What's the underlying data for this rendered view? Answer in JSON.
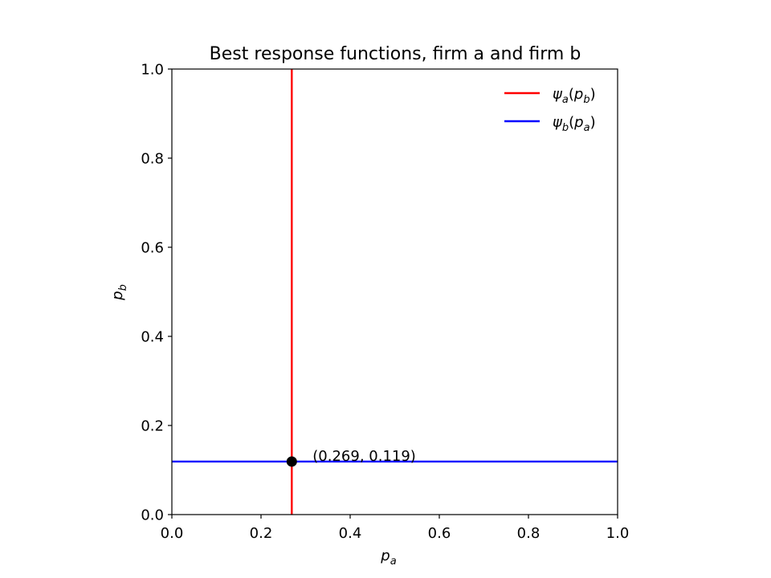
{
  "chart_data": {
    "type": "line",
    "title": "Best response functions, firm a and firm b",
    "xlabel": {
      "main": "p",
      "sub": "a"
    },
    "ylabel": {
      "main": "p",
      "sub": "b"
    },
    "xlim": [
      0.0,
      1.0
    ],
    "ylim": [
      0.0,
      1.0
    ],
    "xticks": [
      0.0,
      0.2,
      0.4,
      0.6,
      0.8,
      1.0
    ],
    "yticks": [
      0.0,
      0.2,
      0.4,
      0.6,
      0.8,
      1.0
    ],
    "xtick_labels": [
      "0.0",
      "0.2",
      "0.4",
      "0.6",
      "0.8",
      "1.0"
    ],
    "ytick_labels": [
      "0.0",
      "0.2",
      "0.4",
      "0.6",
      "0.8",
      "1.0"
    ],
    "grid": false,
    "legend_position": "top-right",
    "series": [
      {
        "name": {
          "psi": "ψ",
          "psi_sub": "a",
          "open": "(",
          "arg": "p",
          "arg_sub": "b",
          "close": ")"
        },
        "color": "#ff0000",
        "x": [
          0.269,
          0.269
        ],
        "y": [
          0.0,
          1.0
        ]
      },
      {
        "name": {
          "psi": "ψ",
          "psi_sub": "b",
          "open": "(",
          "arg": "p",
          "arg_sub": "a",
          "close": ")"
        },
        "color": "#0000ff",
        "x": [
          0.0,
          1.0
        ],
        "y": [
          0.119,
          0.119
        ]
      }
    ],
    "equilibrium": {
      "x": 0.269,
      "y": 0.119,
      "color": "#000000",
      "label": "(0.269, 0.119)"
    }
  }
}
